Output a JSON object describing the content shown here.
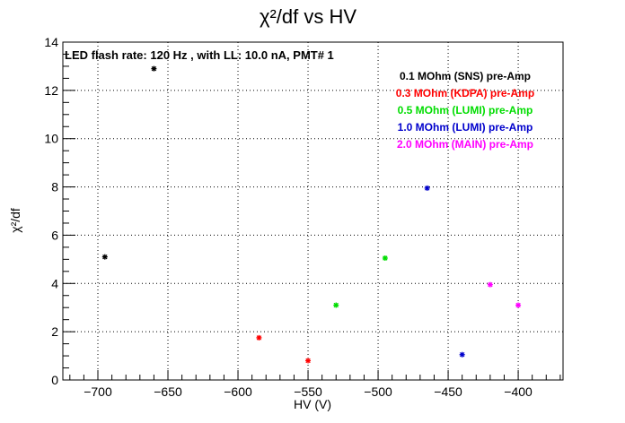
{
  "chart_data": {
    "type": "scatter",
    "title": "χ²/df vs HV",
    "xlabel": "HV (V)",
    "ylabel": "χ²/df",
    "annotation": "LED flash rate: 120 Hz , with LL: 10.0 nA, PMT# 1",
    "xlim": [
      -725,
      -368
    ],
    "ylim": [
      0,
      14
    ],
    "grid": true,
    "legend_position": "top-right",
    "x_ticks": [
      "−700",
      "−650",
      "−600",
      "−550",
      "−500",
      "−450",
      "−400"
    ],
    "x_tick_values": [
      -700,
      -650,
      -600,
      -550,
      -500,
      -450,
      -400
    ],
    "y_ticks": [
      "0",
      "2",
      "4",
      "6",
      "8",
      "10",
      "12",
      "14"
    ],
    "y_tick_values": [
      0,
      2,
      4,
      6,
      8,
      10,
      12,
      14
    ],
    "series": [
      {
        "name": "0.1 MOhm (SNS) pre-Amp",
        "color": "#000000",
        "points": [
          [
            -695,
            5.1
          ],
          [
            -660,
            12.9
          ]
        ]
      },
      {
        "name": "0.3 MOhm (KDPA) pre-Amp",
        "color": "#ff0000",
        "points": [
          [
            -585,
            1.75
          ],
          [
            -550,
            0.8
          ]
        ]
      },
      {
        "name": "0.5 MOhm (LUMI) pre-Amp",
        "color": "#00dd00",
        "points": [
          [
            -530,
            3.1
          ],
          [
            -495,
            5.05
          ]
        ]
      },
      {
        "name": "1.0 MOhm (LUMI) pre-Amp",
        "color": "#0000cc",
        "points": [
          [
            -465,
            7.95
          ],
          [
            -440,
            1.05
          ]
        ]
      },
      {
        "name": "2.0 MOhm (MAIN) pre-Amp",
        "color": "#ff00ff",
        "points": [
          [
            -420,
            3.95
          ],
          [
            -400,
            3.1
          ]
        ]
      }
    ]
  }
}
